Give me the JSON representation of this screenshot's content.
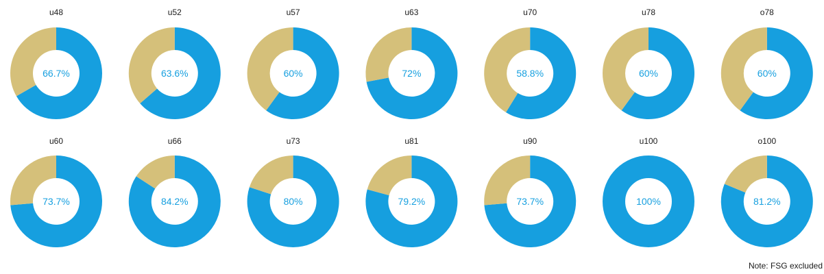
{
  "note": "Note: FSG excluded",
  "colors": {
    "primary": "#169fdf",
    "secondary": "#d5c07a",
    "label": "#169fdf"
  },
  "chart_data": [
    {
      "type": "pie",
      "title": "u48",
      "values": [
        66.7,
        33.3
      ],
      "label": "66.7%"
    },
    {
      "type": "pie",
      "title": "u52",
      "values": [
        63.6,
        36.4
      ],
      "label": "63.6%"
    },
    {
      "type": "pie",
      "title": "u57",
      "values": [
        60,
        40
      ],
      "label": "60%"
    },
    {
      "type": "pie",
      "title": "u63",
      "values": [
        72,
        28
      ],
      "label": "72%"
    },
    {
      "type": "pie",
      "title": "u70",
      "values": [
        58.8,
        41.2
      ],
      "label": "58.8%"
    },
    {
      "type": "pie",
      "title": "u78",
      "values": [
        60,
        40
      ],
      "label": "60%"
    },
    {
      "type": "pie",
      "title": "o78",
      "values": [
        60,
        40
      ],
      "label": "60%"
    },
    {
      "type": "pie",
      "title": "u60",
      "values": [
        73.7,
        26.3
      ],
      "label": "73.7%"
    },
    {
      "type": "pie",
      "title": "u66",
      "values": [
        84.2,
        15.8
      ],
      "label": "84.2%"
    },
    {
      "type": "pie",
      "title": "u73",
      "values": [
        80,
        20
      ],
      "label": "80%"
    },
    {
      "type": "pie",
      "title": "u81",
      "values": [
        79.2,
        20.8
      ],
      "label": "79.2%"
    },
    {
      "type": "pie",
      "title": "u90",
      "values": [
        73.7,
        26.3
      ],
      "label": "73.7%"
    },
    {
      "type": "pie",
      "title": "u100",
      "values": [
        100,
        0
      ],
      "label": "100%"
    },
    {
      "type": "pie",
      "title": "o100",
      "values": [
        81.2,
        18.8
      ],
      "label": "81.2%"
    }
  ]
}
